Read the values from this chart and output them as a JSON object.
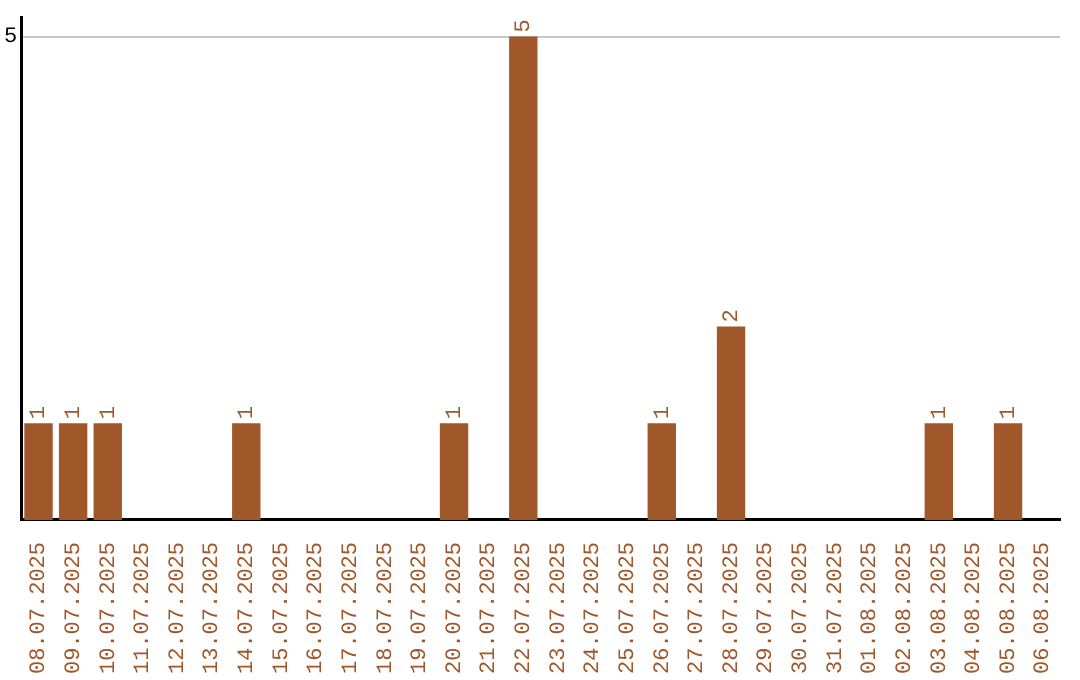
{
  "chart_data": {
    "type": "bar",
    "categories": [
      "08.07.2025",
      "09.07.2025",
      "10.07.2025",
      "11.07.2025",
      "12.07.2025",
      "13.07.2025",
      "14.07.2025",
      "15.07.2025",
      "16.07.2025",
      "17.07.2025",
      "18.07.2025",
      "19.07.2025",
      "20.07.2025",
      "21.07.2025",
      "22.07.2025",
      "23.07.2025",
      "24.07.2025",
      "25.07.2025",
      "26.07.2025",
      "27.07.2025",
      "28.07.2025",
      "29.07.2025",
      "30.07.2025",
      "31.07.2025",
      "01.08.2025",
      "02.08.2025",
      "03.08.2025",
      "04.08.2025",
      "05.08.2025",
      "06.08.2025"
    ],
    "values": [
      1,
      1,
      1,
      0,
      0,
      0,
      1,
      0,
      0,
      0,
      0,
      0,
      1,
      0,
      5,
      0,
      0,
      0,
      1,
      0,
      2,
      0,
      0,
      0,
      0,
      0,
      1,
      0,
      1,
      0
    ],
    "value_labels": [
      "1",
      "1",
      "1",
      null,
      null,
      null,
      "1",
      null,
      null,
      null,
      null,
      null,
      "1",
      null,
      "5",
      null,
      null,
      null,
      "1",
      null,
      "2",
      null,
      null,
      null,
      null,
      null,
      "1",
      null,
      "1",
      null
    ],
    "color": "#a0572a",
    "ylim": [
      0,
      5.2
    ],
    "yticks": [
      5
    ],
    "grid": "y",
    "legend": false
  }
}
